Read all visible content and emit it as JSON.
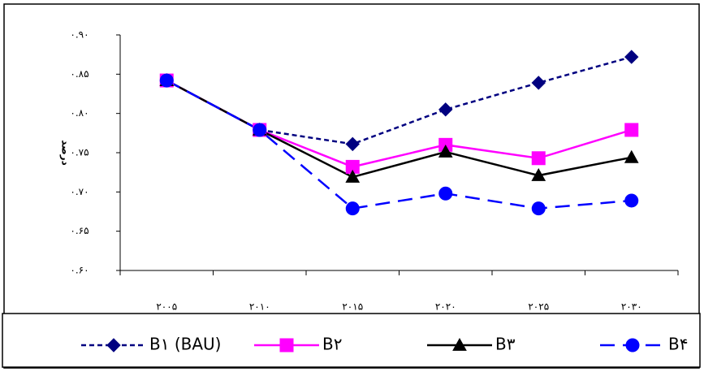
{
  "chart_data": {
    "type": "line",
    "y_label": "درصد",
    "categories": [
      "۲۰۰۵",
      "۲۰۱۰",
      "۲۰۱۵",
      "۲۰۲۰",
      "۲۰۲۵",
      "۲۰۳۰"
    ],
    "series": [
      {
        "name": "B۱ (BAU)",
        "color": "#000080",
        "marker": "diamond",
        "line_style": "dashed",
        "values": [
          0.842,
          0.779,
          0.761,
          0.805,
          0.839,
          0.872
        ]
      },
      {
        "name": "B۲",
        "color": "#ff00ff",
        "marker": "square",
        "line_style": "solid",
        "values": [
          0.842,
          0.779,
          0.732,
          0.76,
          0.743,
          0.779
        ]
      },
      {
        "name": "B۳",
        "color": "#000000",
        "marker": "triangle",
        "line_style": "solid",
        "values": [
          0.842,
          0.779,
          0.719,
          0.751,
          0.721,
          0.744
        ]
      },
      {
        "name": "B۴",
        "color": "#0000ff",
        "marker": "circle",
        "line_style": "longdash",
        "values": [
          0.842,
          0.779,
          0.679,
          0.698,
          0.679,
          0.689
        ]
      }
    ],
    "ylim": [
      0.6,
      0.9
    ],
    "yticks": [
      {
        "value": 0.6,
        "label": "۰.۶۰"
      },
      {
        "value": 0.65,
        "label": "۰.۶۵"
      },
      {
        "value": 0.7,
        "label": "۰.۷۰"
      },
      {
        "value": 0.75,
        "label": "۰.۷۵"
      },
      {
        "value": 0.8,
        "label": "۰.۸۰"
      },
      {
        "value": 0.85,
        "label": "۰.۸۵"
      },
      {
        "value": 0.9,
        "label": "۰.۹۰"
      }
    ],
    "grid": false,
    "legend": "bottom"
  }
}
